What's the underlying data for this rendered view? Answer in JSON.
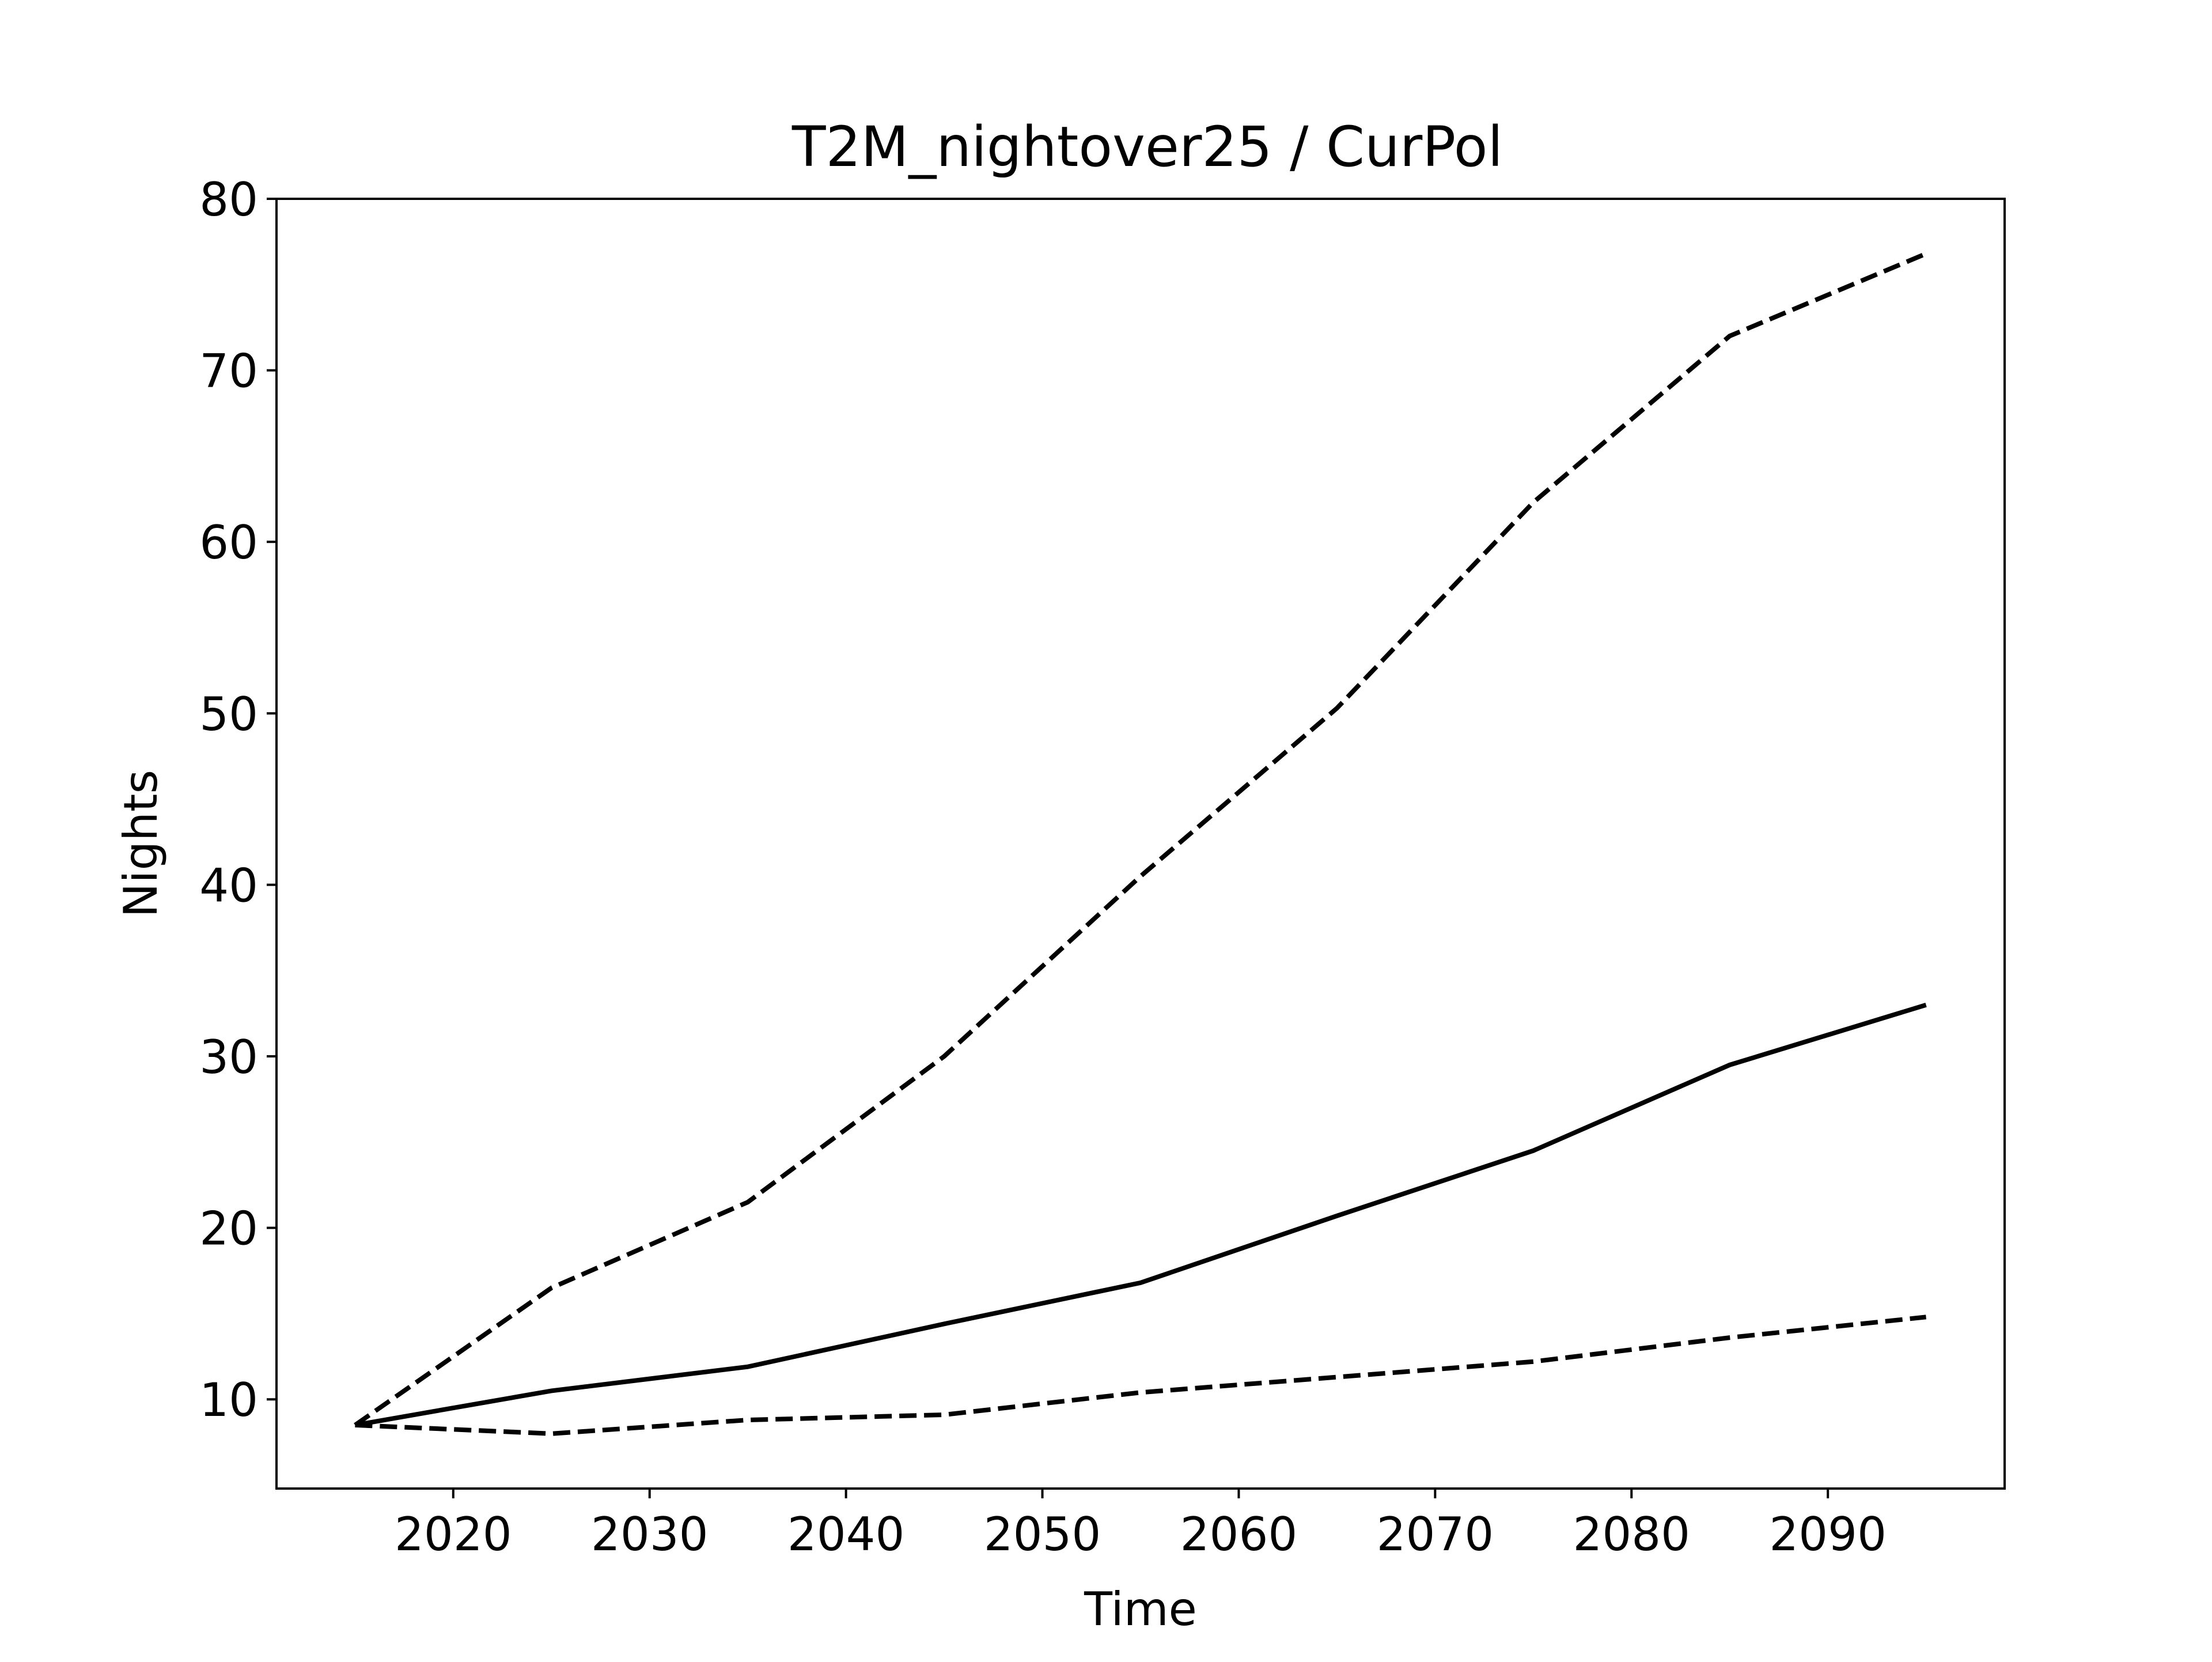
{
  "chart_data": {
    "type": "line",
    "title": "T2M_nightover25 / CurPol",
    "xlabel": "Time",
    "ylabel": "Nights",
    "xlim": [
      2011,
      2099
    ],
    "ylim": [
      4.8,
      80
    ],
    "xticks": [
      2020,
      2030,
      2040,
      2050,
      2060,
      2070,
      2080,
      2090
    ],
    "yticks": [
      10,
      20,
      30,
      40,
      50,
      60,
      70,
      80
    ],
    "grid": false,
    "legend": "none",
    "line_color": "#000000",
    "series": [
      {
        "style": "dashed",
        "x": [
          2015,
          2025,
          2035,
          2045,
          2055,
          2065,
          2075,
          2085,
          2095
        ],
        "y": [
          8.5,
          16.5,
          21.5,
          30.0,
          40.5,
          50.3,
          62.3,
          72.0,
          76.8
        ]
      },
      {
        "style": "solid",
        "x": [
          2015,
          2025,
          2035,
          2045,
          2055,
          2065,
          2075,
          2085,
          2095
        ],
        "y": [
          8.5,
          10.5,
          11.9,
          14.4,
          16.8,
          20.7,
          24.5,
          29.5,
          33.0
        ]
      },
      {
        "style": "dashed",
        "x": [
          2015,
          2025,
          2035,
          2045,
          2055,
          2065,
          2075,
          2085,
          2095
        ],
        "y": [
          8.5,
          8.0,
          8.8,
          9.1,
          10.4,
          11.3,
          12.2,
          13.6,
          14.8
        ]
      }
    ]
  }
}
